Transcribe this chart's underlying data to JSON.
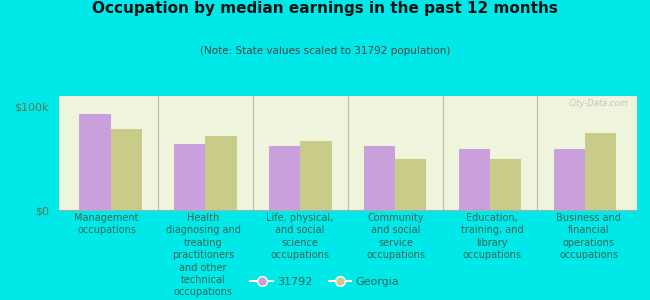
{
  "title": "Occupation by median earnings in the past 12 months",
  "subtitle": "(Note: State values scaled to 31792 population)",
  "categories": [
    "Management\noccupations",
    "Health\ndiagnosing and\ntreating\npractitioners\nand other\ntechnical\noccupations",
    "Life, physical,\nand social\nscience\noccupations",
    "Community\nand social\nservice\noccupations",
    "Education,\ntraining, and\nlibrary\noccupations",
    "Business and\nfinancial\noperations\noccupations"
  ],
  "values_31792": [
    93000,
    64000,
    62000,
    62000,
    59000,
    59000
  ],
  "values_georgia": [
    78000,
    71000,
    67000,
    49000,
    49000,
    74000
  ],
  "color_31792": "#c9a0dc",
  "color_georgia": "#c8cc88",
  "bar_width": 0.33,
  "ylim": [
    0,
    110000
  ],
  "ytick_labels": [
    "$0",
    "$100k"
  ],
  "background_color": "#eef5dc",
  "outer_background": "#00e8e8",
  "legend_label_31792": "31792",
  "legend_label_georgia": "Georgia",
  "watermark": "City-Data.com",
  "title_fontsize": 11,
  "subtitle_fontsize": 7.5,
  "axis_label_fontsize": 7,
  "legend_fontsize": 8,
  "ytick_fontsize": 8,
  "title_color": "#111111",
  "subtitle_color": "#444444",
  "label_color": "#336655",
  "ytick_color": "#557755"
}
